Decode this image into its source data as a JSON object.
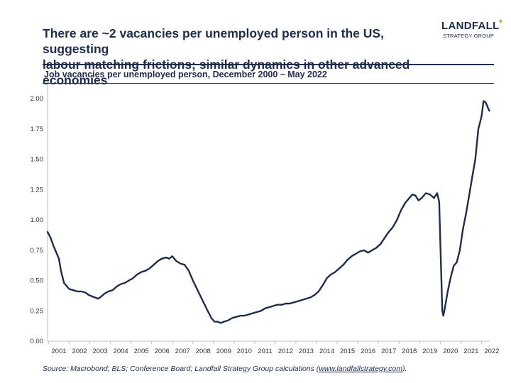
{
  "header": {
    "title_line1": "There are ~2 vacancies per unemployed person in the US, suggesting",
    "title_line2": "labour matching frictions; similar dynamics in other advanced economies",
    "logo_name": "LANDFALL",
    "logo_tagline": "STRATEGY GROUP"
  },
  "colors": {
    "line": "#1f2d4d",
    "accent": "#c9a84b",
    "axis": "#bfbfbf"
  },
  "footer": {
    "source_prefix": "Source: Macrobond; BLS; Conference Board; Landfall Strategy Group calculations (",
    "source_link": "www.landfallstrategy.com",
    "source_suffix": ")."
  },
  "chart_data": {
    "type": "line",
    "title": "Job vacancies per unemployed person, December 2000 – May 2022",
    "xlabel": "",
    "ylabel": "",
    "xlim": [
      2000.95,
      2022.4
    ],
    "ylim": [
      0,
      2.0
    ],
    "yticks": [
      0.0,
      0.25,
      0.5,
      0.75,
      1.0,
      1.25,
      1.5,
      1.75,
      2.0
    ],
    "ytick_labels": [
      "0.00",
      "0.25",
      "0.50",
      "0.75",
      "1.00",
      "1.25",
      "1.50",
      "1.75",
      "2.00"
    ],
    "xtick_labels": [
      "2001",
      "2002",
      "2003",
      "2004",
      "2005",
      "2006",
      "2007",
      "2008",
      "2009",
      "2010",
      "2011",
      "2012",
      "2013",
      "2014",
      "2015",
      "2016",
      "2017",
      "2018",
      "2019",
      "2020",
      "2021",
      "2022"
    ],
    "grid": false,
    "legend": "none",
    "series": [
      {
        "x": [
          2000.95,
          2001.1,
          2001.25,
          2001.4,
          2001.5,
          2001.6,
          2001.75,
          2001.9,
          2002.0,
          2002.2,
          2002.4,
          2002.6,
          2002.8,
          2002.95,
          2003.1,
          2003.25,
          2003.4,
          2003.5,
          2003.7,
          2003.9,
          2004.1,
          2004.3,
          2004.5,
          2004.7,
          2004.9,
          2005.1,
          2005.3,
          2005.5,
          2005.7,
          2005.9,
          2006.1,
          2006.3,
          2006.5,
          2006.7,
          2006.85,
          2007.0,
          2007.2,
          2007.4,
          2007.6,
          2007.8,
          2008.0,
          2008.2,
          2008.4,
          2008.6,
          2008.75,
          2008.9,
          2009.05,
          2009.2,
          2009.35,
          2009.5,
          2009.7,
          2009.9,
          2010.1,
          2010.3,
          2010.5,
          2010.7,
          2010.9,
          2011.1,
          2011.3,
          2011.5,
          2011.7,
          2011.9,
          2012.1,
          2012.3,
          2012.5,
          2012.7,
          2012.9,
          2013.1,
          2013.3,
          2013.5,
          2013.7,
          2013.9,
          2014.1,
          2014.3,
          2014.5,
          2014.7,
          2014.9,
          2015.1,
          2015.3,
          2015.5,
          2015.7,
          2015.9,
          2016.1,
          2016.3,
          2016.5,
          2016.7,
          2016.9,
          2017.1,
          2017.3,
          2017.5,
          2017.7,
          2017.9,
          2018.1,
          2018.3,
          2018.5,
          2018.65,
          2018.8,
          2018.95,
          2019.1,
          2019.3,
          2019.5,
          2019.7,
          2019.85,
          2019.95,
          2020.05,
          2020.1,
          2020.15,
          2020.25,
          2020.35,
          2020.5,
          2020.65,
          2020.8,
          2020.95,
          2021.1,
          2021.25,
          2021.4,
          2021.55,
          2021.7,
          2021.85,
          2022.0,
          2022.1,
          2022.2,
          2022.3,
          2022.38
        ],
        "values": [
          0.9,
          0.85,
          0.78,
          0.72,
          0.68,
          0.58,
          0.48,
          0.45,
          0.43,
          0.42,
          0.41,
          0.41,
          0.4,
          0.38,
          0.37,
          0.36,
          0.35,
          0.36,
          0.39,
          0.41,
          0.42,
          0.45,
          0.47,
          0.48,
          0.5,
          0.52,
          0.55,
          0.57,
          0.58,
          0.6,
          0.63,
          0.66,
          0.68,
          0.69,
          0.68,
          0.7,
          0.66,
          0.64,
          0.63,
          0.58,
          0.5,
          0.43,
          0.36,
          0.29,
          0.24,
          0.19,
          0.16,
          0.16,
          0.15,
          0.16,
          0.17,
          0.19,
          0.2,
          0.21,
          0.21,
          0.22,
          0.23,
          0.24,
          0.25,
          0.27,
          0.28,
          0.29,
          0.3,
          0.3,
          0.31,
          0.31,
          0.32,
          0.33,
          0.34,
          0.35,
          0.36,
          0.38,
          0.41,
          0.46,
          0.52,
          0.55,
          0.57,
          0.6,
          0.63,
          0.67,
          0.7,
          0.72,
          0.74,
          0.75,
          0.73,
          0.75,
          0.77,
          0.8,
          0.85,
          0.9,
          0.94,
          1.0,
          1.08,
          1.14,
          1.18,
          1.21,
          1.2,
          1.16,
          1.18,
          1.22,
          1.21,
          1.18,
          1.22,
          1.15,
          0.55,
          0.25,
          0.21,
          0.3,
          0.4,
          0.52,
          0.62,
          0.65,
          0.75,
          0.92,
          1.05,
          1.2,
          1.35,
          1.5,
          1.75,
          1.85,
          1.98,
          1.97,
          1.93,
          1.9
        ]
      }
    ]
  }
}
